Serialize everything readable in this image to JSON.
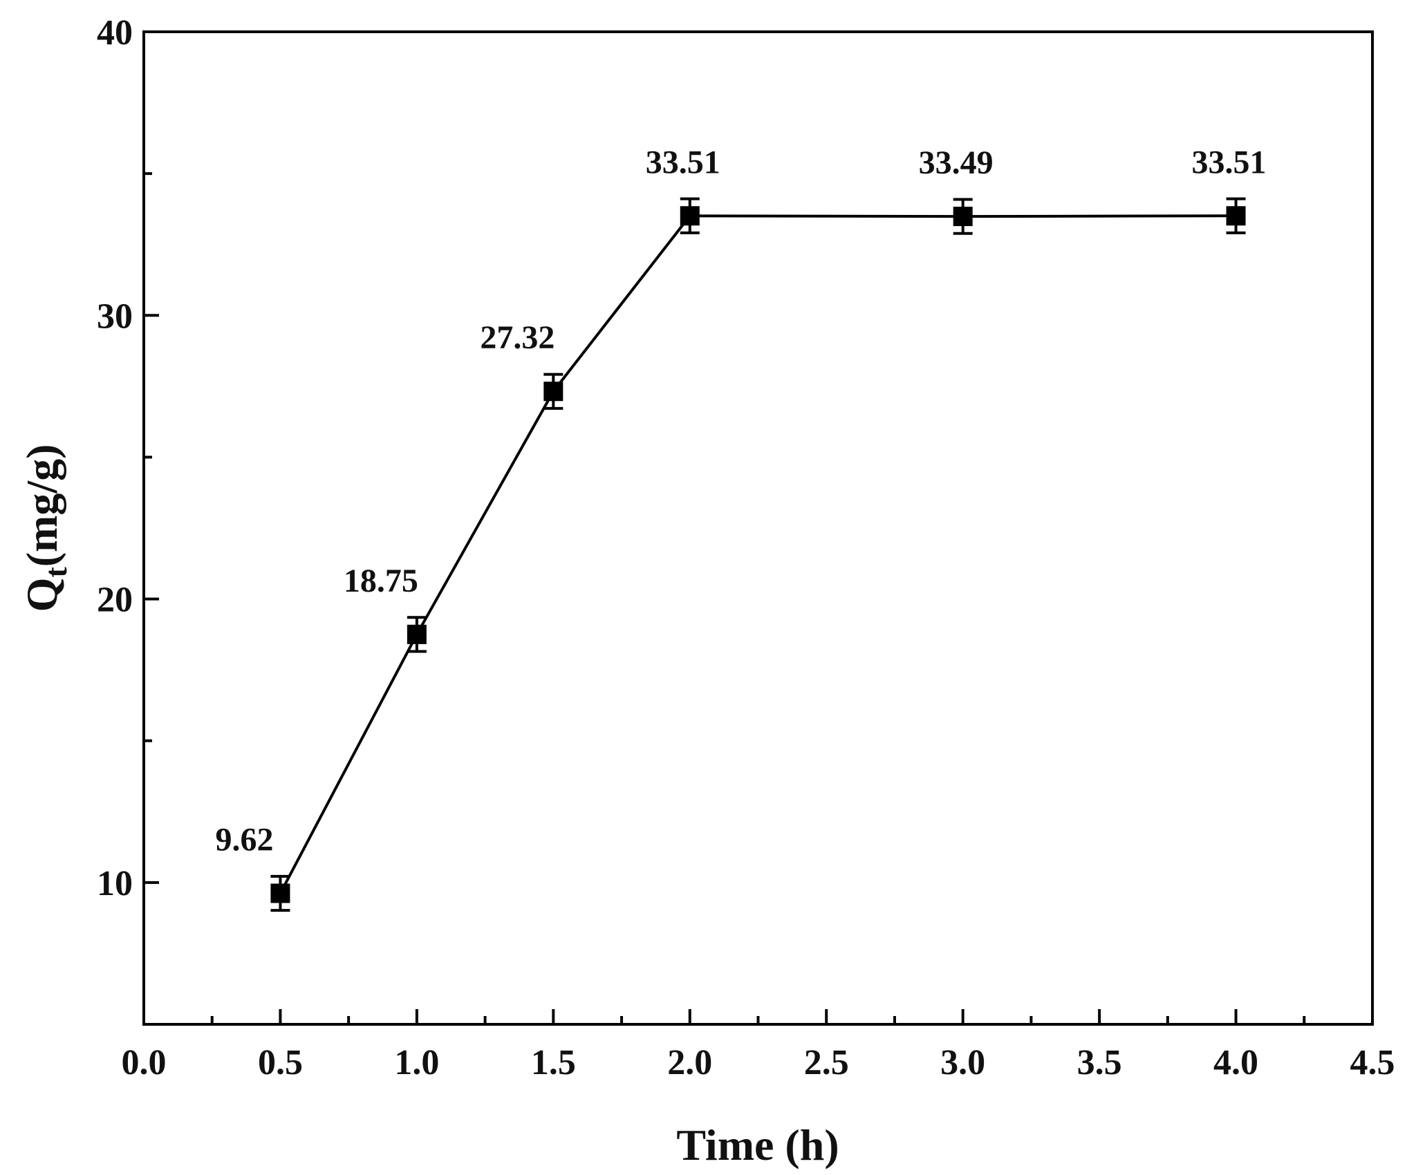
{
  "chart_data": {
    "type": "line",
    "xlabel": "Time (h)",
    "ylabel": {
      "main": "Q",
      "sub": "t",
      "unit": "(mg/g)"
    },
    "xlim": [
      0.0,
      4.5
    ],
    "ylim": [
      5,
      40
    ],
    "x_ticks": [
      "0.0",
      "0.5",
      "1.0",
      "1.5",
      "2.0",
      "2.5",
      "3.0",
      "3.5",
      "4.0",
      "4.5"
    ],
    "y_ticks": [
      "10",
      "20",
      "30",
      "40"
    ],
    "grid": false,
    "marker": "square",
    "line_color": "#000000",
    "series": [
      {
        "x": [
          0.5,
          1.0,
          1.5,
          2.0,
          3.0,
          4.0
        ],
        "y": [
          9.62,
          18.75,
          27.32,
          33.51,
          33.49,
          33.51
        ],
        "error": [
          0.6,
          0.6,
          0.6,
          0.6,
          0.6,
          0.6
        ],
        "data_labels": [
          "9.62",
          "18.75",
          "27.32",
          "33.51",
          "33.49",
          "33.51"
        ]
      }
    ]
  }
}
